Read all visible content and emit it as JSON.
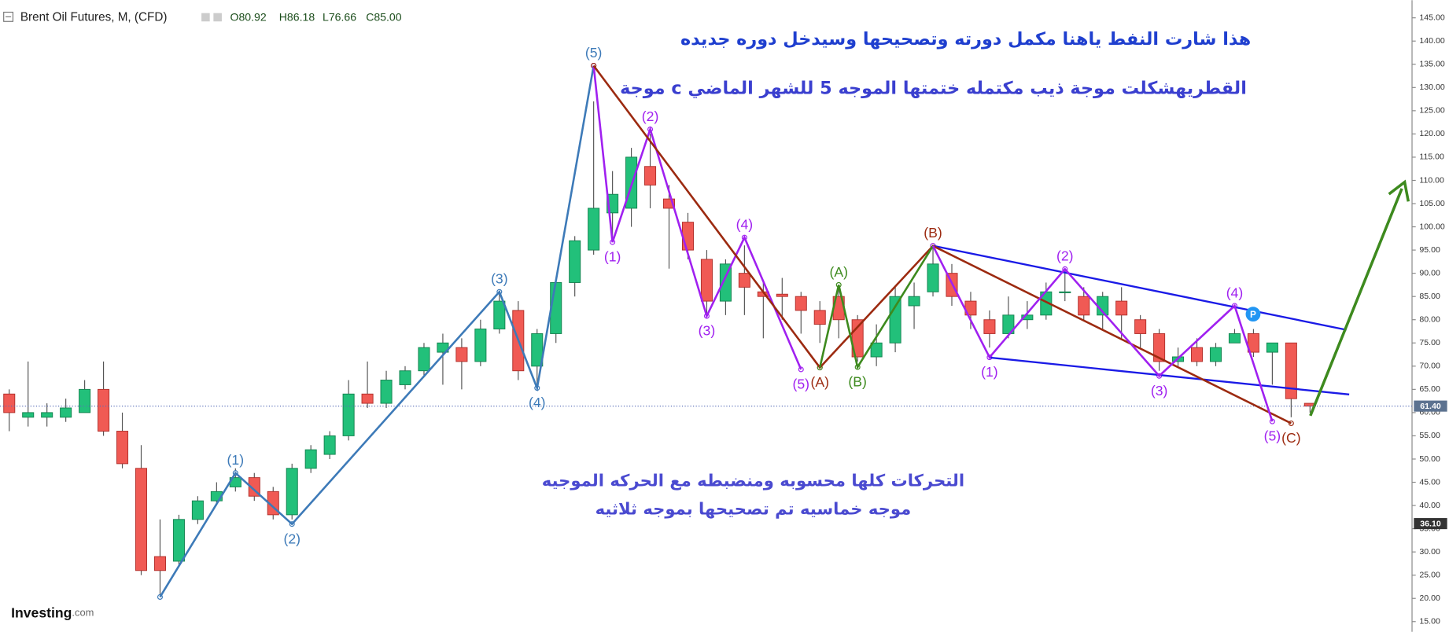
{
  "chart_data": {
    "type": "candlestick",
    "title": "Brent Oil Futures, M, (CFD)",
    "ohlc_header": [
      "O80.92",
      "H86.18",
      "L76.66",
      "C85.00"
    ],
    "up_color": "#22c07a",
    "down_color": "#f05a54",
    "open": [
      64,
      59,
      59,
      59,
      60,
      65,
      56,
      48,
      29,
      28,
      37,
      41,
      44,
      46,
      43,
      38,
      48,
      51,
      55,
      64,
      62,
      66,
      69,
      73,
      74,
      71,
      78,
      82,
      70,
      77,
      88,
      95,
      103,
      104,
      113,
      106,
      101,
      93,
      84,
      90,
      86,
      85.5,
      85,
      82,
      85,
      80,
      72,
      75,
      83,
      86,
      90,
      84,
      80,
      77,
      80,
      81,
      86,
      85,
      81,
      84,
      80,
      77,
      71,
      74,
      71,
      75,
      77,
      73,
      75,
      62
    ],
    "high": [
      65,
      71,
      62,
      63,
      67,
      71,
      60,
      53,
      37,
      38,
      42,
      45,
      48,
      47,
      44,
      49,
      53,
      56,
      67,
      71,
      69,
      70,
      75,
      77,
      76,
      80,
      86,
      84,
      78,
      89,
      98,
      127,
      112,
      117,
      120,
      109,
      103,
      95,
      93,
      96,
      88,
      89,
      86,
      84,
      87,
      81,
      79,
      87,
      88,
      96,
      92,
      86,
      82,
      85,
      84,
      88,
      91,
      87,
      86,
      87,
      81,
      78,
      74,
      76,
      75,
      78,
      78,
      75,
      75,
      62
    ],
    "low": [
      56,
      57,
      57,
      58,
      60,
      55,
      48,
      25,
      20,
      27,
      36,
      40,
      43,
      41,
      37,
      37,
      47,
      50,
      54,
      61,
      61,
      65,
      68,
      66,
      65,
      70,
      77,
      67,
      66,
      75,
      85,
      94,
      97,
      100,
      104,
      91,
      93,
      81,
      81,
      81,
      76,
      80,
      77,
      75,
      76,
      71,
      70,
      73,
      78,
      85,
      83,
      78,
      74,
      76,
      78,
      80,
      84,
      80,
      78,
      76,
      74,
      69,
      70,
      70,
      70,
      75,
      72,
      66,
      59,
      60
    ],
    "close": [
      60,
      60,
      60,
      61,
      65,
      56,
      49,
      26,
      26,
      37,
      41,
      43,
      46,
      42,
      38,
      48,
      52,
      55,
      64,
      62,
      67,
      69,
      74,
      75,
      71,
      78,
      84,
      69,
      77,
      88,
      97,
      104,
      107,
      115,
      109,
      104,
      95,
      84,
      92,
      87,
      85,
      85,
      82,
      79,
      80,
      72,
      75,
      85,
      85,
      92,
      85,
      81,
      77,
      81,
      81,
      86,
      86,
      81,
      85,
      81,
      77,
      71,
      72,
      71,
      74,
      77,
      73,
      75,
      63,
      61.4
    ],
    "ylim": [
      12.8,
      148.8
    ],
    "yticks": [
      {
        "value": 15,
        "label": "15.00"
      },
      {
        "value": 20,
        "label": "20.00"
      },
      {
        "value": 25,
        "label": "25.00"
      },
      {
        "value": 30,
        "label": "30.00"
      },
      {
        "value": 35,
        "label": "35.00"
      },
      {
        "value": 40,
        "label": "40.00"
      },
      {
        "value": 45,
        "label": "45.00"
      },
      {
        "value": 50,
        "label": "50.00"
      },
      {
        "value": 55,
        "label": "55.00"
      },
      {
        "value": 60,
        "label": "60.00"
      },
      {
        "value": 65,
        "label": "65.00"
      },
      {
        "value": 70,
        "label": "70.00"
      },
      {
        "value": 75,
        "label": "75.00"
      },
      {
        "value": 80,
        "label": "80.00"
      },
      {
        "value": 85,
        "label": "85.00"
      },
      {
        "value": 90,
        "label": "90.00"
      },
      {
        "value": 95,
        "label": "95.00"
      },
      {
        "value": 100,
        "label": "100.00"
      },
      {
        "value": 105,
        "label": "105.00"
      },
      {
        "value": 110,
        "label": "110.00"
      },
      {
        "value": 115,
        "label": "115.00"
      },
      {
        "value": 120,
        "label": "120.00"
      },
      {
        "value": 125,
        "label": "125.00"
      },
      {
        "value": 130,
        "label": "130.00"
      },
      {
        "value": 135,
        "label": "135.00"
      },
      {
        "value": 140,
        "label": "140.00"
      },
      {
        "value": 145,
        "label": "145.00"
      }
    ],
    "price_labels": [
      {
        "value": 61.4,
        "label": "61.40",
        "color": "#5c7290"
      },
      {
        "value": 36.1,
        "label": "36.10",
        "color": "#333333"
      }
    ],
    "waves": [
      {
        "color": "#3d7ab8",
        "points": [
          {
            "x": 8,
            "y": 20.3
          },
          {
            "x": 12,
            "y": 47,
            "label": "(1)"
          },
          {
            "x": 15,
            "y": 36,
            "label": "(2)"
          },
          {
            "x": 26,
            "y": 86,
            "label": "(3)"
          },
          {
            "x": 28,
            "y": 65.3,
            "label": "(4)"
          },
          {
            "x": 31,
            "y": 134.7,
            "label": "(5)"
          }
        ]
      },
      {
        "color": "#a020f0",
        "points": [
          {
            "x": 31,
            "y": 134.7
          },
          {
            "x": 32,
            "y": 96.7,
            "label": "(1)"
          },
          {
            "x": 34,
            "y": 121,
            "label": "(2)"
          },
          {
            "x": 37,
            "y": 80.8,
            "label": "(3)"
          },
          {
            "x": 39,
            "y": 97.7,
            "label": "(4)"
          },
          {
            "x": 42,
            "y": 69.3,
            "label": "(5)"
          }
        ]
      },
      {
        "color": "#9c2a10",
        "points": [
          {
            "x": 31,
            "y": 134.7
          },
          {
            "x": 43,
            "y": 69.7,
            "label": "(A)"
          },
          {
            "x": 49,
            "y": 95.9,
            "label": "(B)"
          },
          {
            "x": 68,
            "y": 57.7,
            "label": "(C)"
          }
        ]
      },
      {
        "color": "#3d8a1e",
        "points": [
          {
            "x": 43,
            "y": 69.7
          },
          {
            "x": 44,
            "y": 87.5,
            "label": "(A)"
          },
          {
            "x": 45,
            "y": 69.8,
            "label": "(B)"
          },
          {
            "x": 49,
            "y": 95.9
          }
        ]
      },
      {
        "color": "#a020f0",
        "points": [
          {
            "x": 49,
            "y": 95.9
          },
          {
            "x": 52,
            "y": 71.9,
            "label": "(1)"
          },
          {
            "x": 56,
            "y": 90.9,
            "label": "(2)"
          },
          {
            "x": 61,
            "y": 67.9,
            "label": "(3)"
          },
          {
            "x": 65,
            "y": 83,
            "label": "(4)"
          },
          {
            "x": 67,
            "y": 58.1,
            "label": "(5)"
          }
        ]
      }
    ],
    "annotations": [
      "هذا شارت النفط ياهنا مكمل دورته وتصحيحها وسيدخل دوره جديده",
      "موجة c القطريهشكلت موجة ذيب مكتمله ختمتها الموجه 5 للشهر الماضي",
      "التحركات كلها محسوبه ومنضبطه مع الحركه الموجيه",
      "موجه خماسيه تم تصحيحها بموجه ثلاثيه"
    ],
    "marker_label": "P",
    "logo": "Investing",
    "logo_suffix": ".com"
  }
}
